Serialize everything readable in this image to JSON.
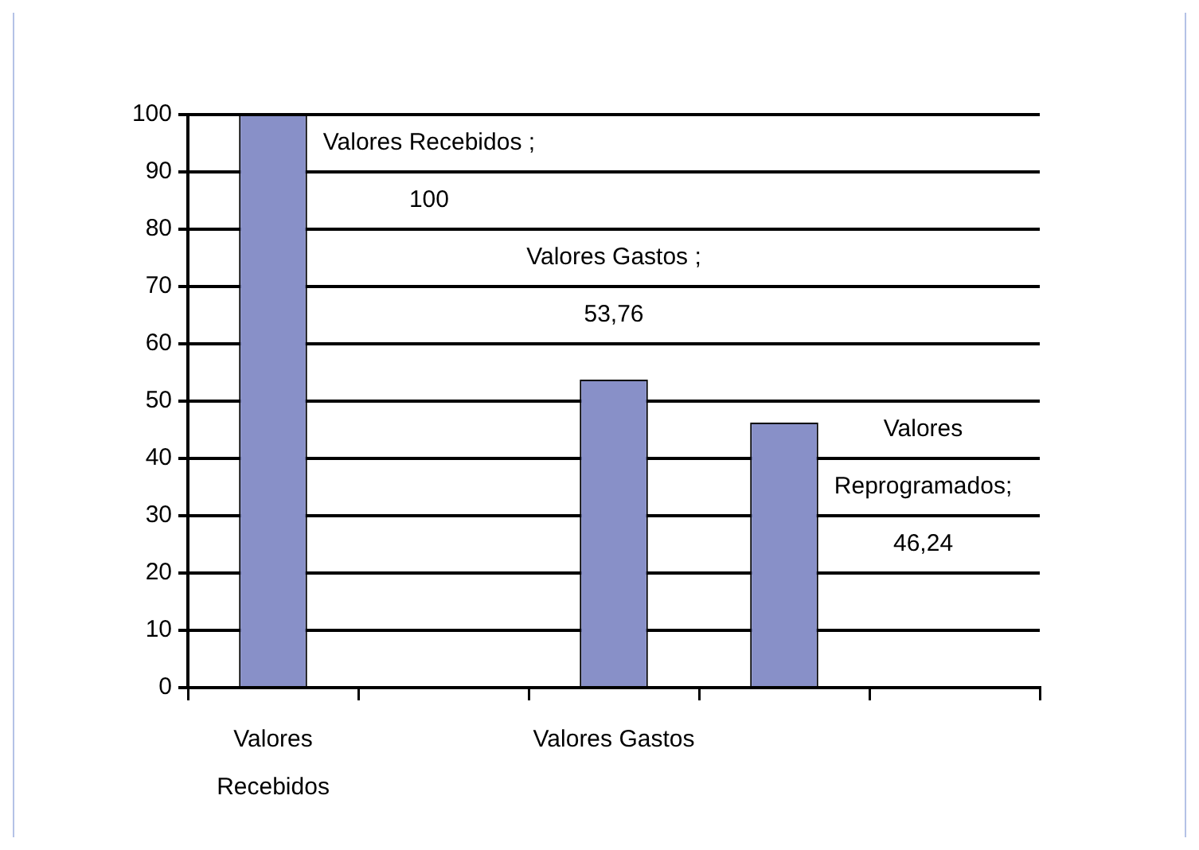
{
  "chart_data": {
    "type": "bar",
    "categories": [
      "Valores Recebidos",
      null,
      "Valores Gastos",
      null,
      null
    ],
    "values": [
      100,
      null,
      53.76,
      46.24,
      null
    ],
    "color": "#8890c8",
    "value_labels": [
      "Valores Recebidos ; 100",
      null,
      "Valores Gastos ; 53,76",
      "Valores Reprogramados; 46,24",
      null
    ],
    "ylim": [
      0,
      100
    ],
    "yticks": [
      0,
      10,
      20,
      30,
      40,
      50,
      60,
      70,
      80,
      90,
      100
    ],
    "grid": "y",
    "legend": false
  }
}
